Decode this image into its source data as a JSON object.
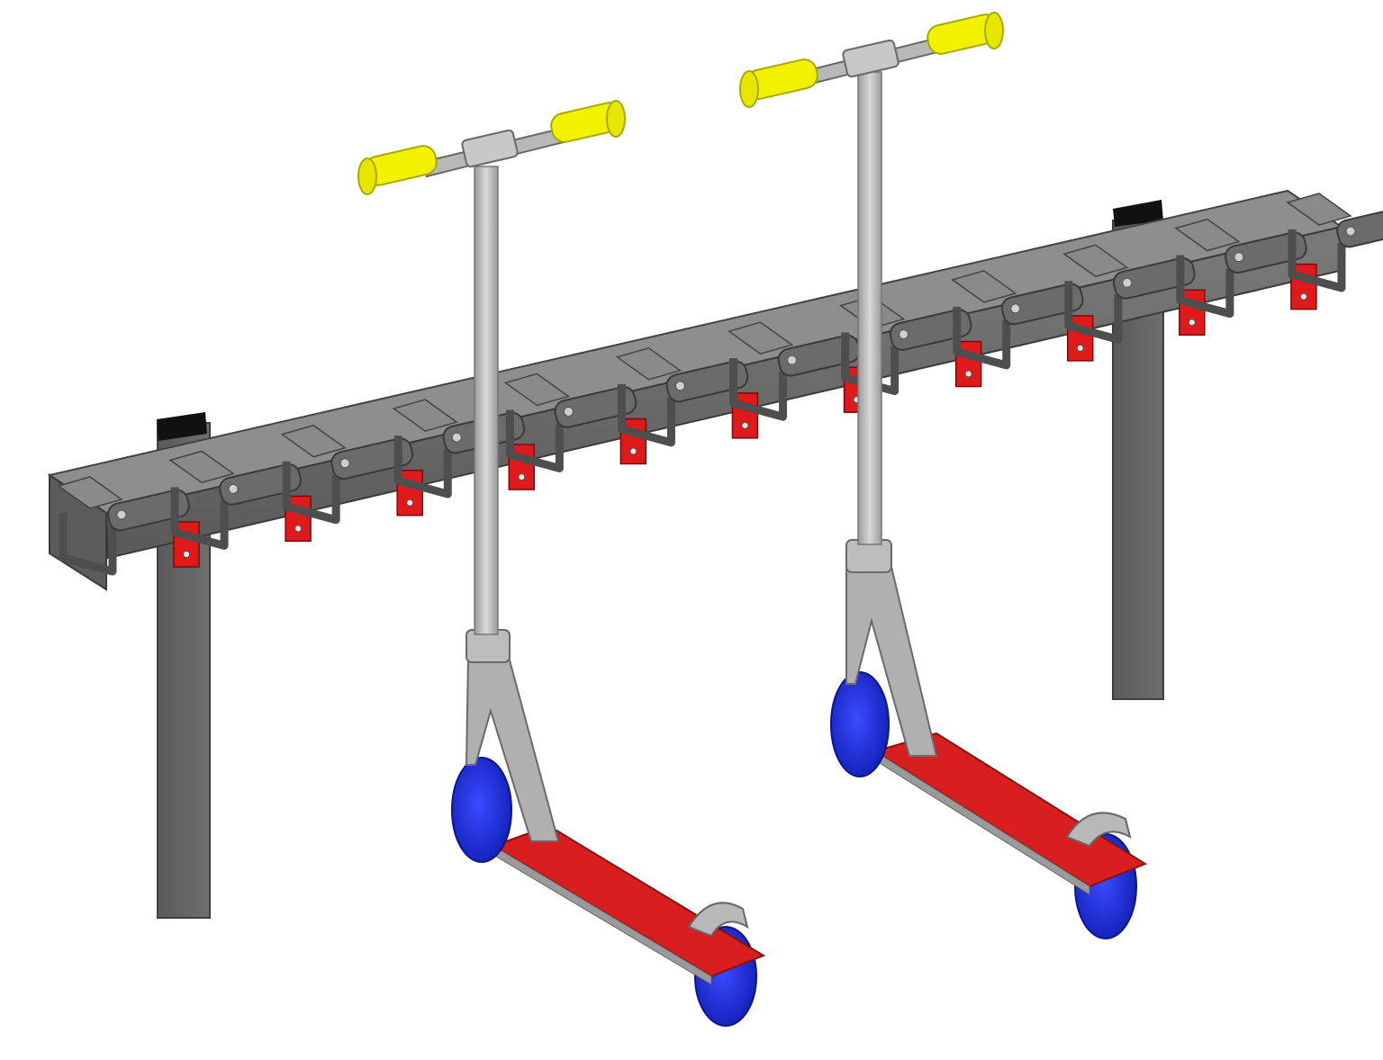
{
  "scene": {
    "subject": "scooter-rack-with-two-kick-scooters",
    "slot_count": 12,
    "scooter_count": 2
  },
  "colors": {
    "background": "#ffffff",
    "rack_frame": "#6b6b6b",
    "rack_dark": "#4e4e4e",
    "rack_light": "#8a8a8a",
    "clamp_red": "#e01a1a",
    "deck_red": "#d81e1e",
    "grip_yellow": "#f2f200",
    "stem_silver": "#b9b9b9",
    "wheel_blue": "#1f2fe0",
    "post_cap_black": "#111111"
  },
  "icons": {
    "rack": "scooter-rack-icon",
    "scooter": "kick-scooter-icon"
  }
}
